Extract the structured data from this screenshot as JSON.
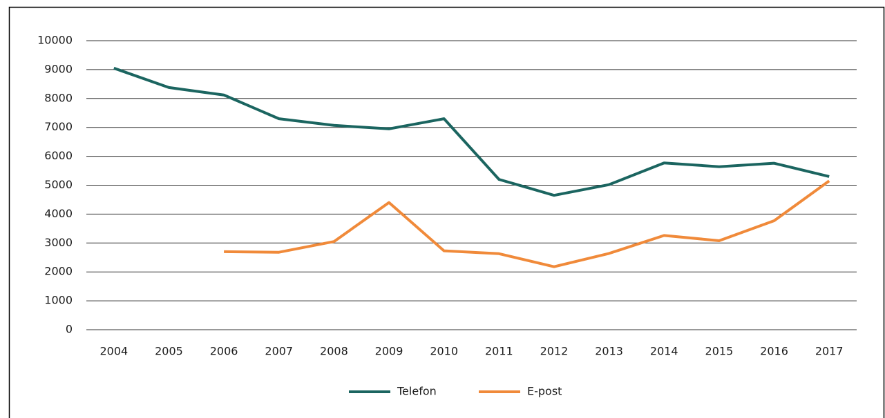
{
  "chart_data": {
    "type": "line",
    "categories": [
      "2004",
      "2005",
      "2006",
      "2007",
      "2008",
      "2009",
      "2010",
      "2011",
      "2012",
      "2013",
      "2014",
      "2015",
      "2016",
      "2017"
    ],
    "series": [
      {
        "name": "Telefon",
        "color": "#1b6560",
        "values": [
          9050,
          8380,
          8120,
          7300,
          7070,
          6950,
          7300,
          5200,
          4650,
          5020,
          5770,
          5640,
          5760,
          5300
        ]
      },
      {
        "name": "E-post",
        "color": "#f08a3a",
        "values": [
          null,
          null,
          2700,
          2680,
          3050,
          4400,
          2730,
          2630,
          2180,
          2640,
          3260,
          3080,
          3770,
          5150
        ]
      }
    ],
    "ylim": [
      0,
      10000
    ],
    "yticks": [
      0,
      1000,
      2000,
      3000,
      4000,
      5000,
      6000,
      7000,
      8000,
      9000,
      10000
    ],
    "grid": true,
    "legend": "bottom"
  }
}
